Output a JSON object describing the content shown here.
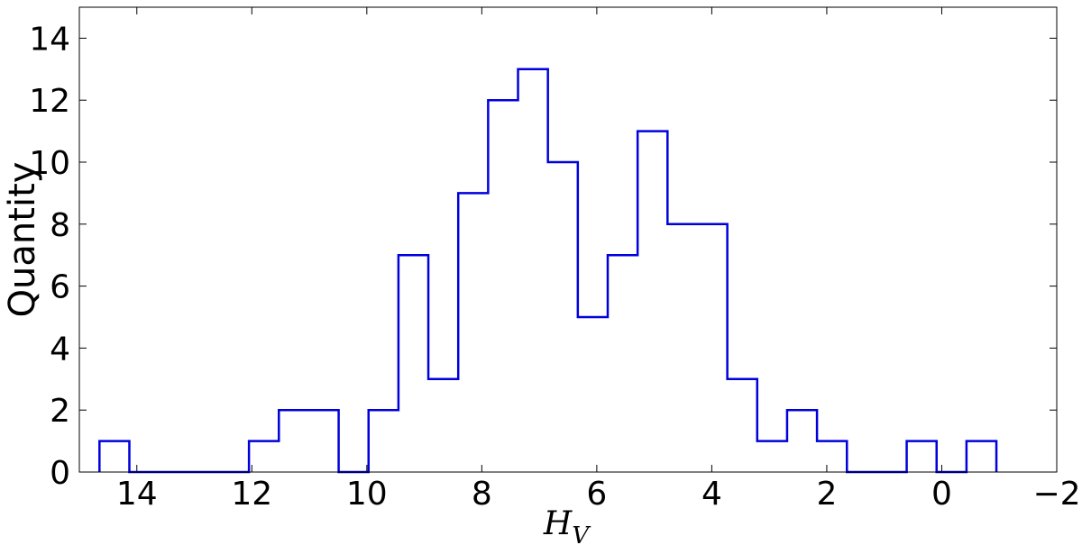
{
  "chart_data": {
    "type": "histogram",
    "title": "",
    "xlabel": "H",
    "xlabel_subscript": "V",
    "ylabel": "Quantity",
    "x_inverted": true,
    "xlim": [
      15,
      -2
    ],
    "ylim": [
      0,
      15
    ],
    "x_ticks": [
      "14",
      "12",
      "10",
      "8",
      "6",
      "4",
      "2",
      "0",
      "−2"
    ],
    "y_ticks": [
      "0",
      "2",
      "4",
      "6",
      "8",
      "10",
      "12",
      "14"
    ],
    "x_tick_values": [
      14,
      12,
      10,
      8,
      6,
      4,
      2,
      0,
      -2
    ],
    "y_tick_values": [
      0,
      2,
      4,
      6,
      8,
      10,
      12,
      14
    ],
    "grid": false,
    "legend": "none",
    "series": [
      {
        "color": "#0000dd",
        "bin_edges": [
          14.65,
          14.13,
          13.61,
          13.09,
          12.57,
          12.05,
          11.53,
          11.01,
          10.49,
          9.97,
          9.45,
          8.93,
          8.41,
          7.89,
          7.37,
          6.85,
          6.33,
          5.81,
          5.29,
          4.77,
          4.25,
          3.73,
          3.21,
          2.69,
          2.17,
          1.65,
          1.13,
          0.61,
          0.09,
          -0.43,
          -0.95
        ],
        "counts": [
          1,
          0,
          0,
          0,
          0,
          1,
          2,
          2,
          0,
          2,
          7,
          3,
          9,
          12,
          13,
          10,
          5,
          7,
          11,
          8,
          8,
          3,
          1,
          2,
          1,
          0,
          0,
          1,
          0,
          1
        ]
      }
    ]
  }
}
